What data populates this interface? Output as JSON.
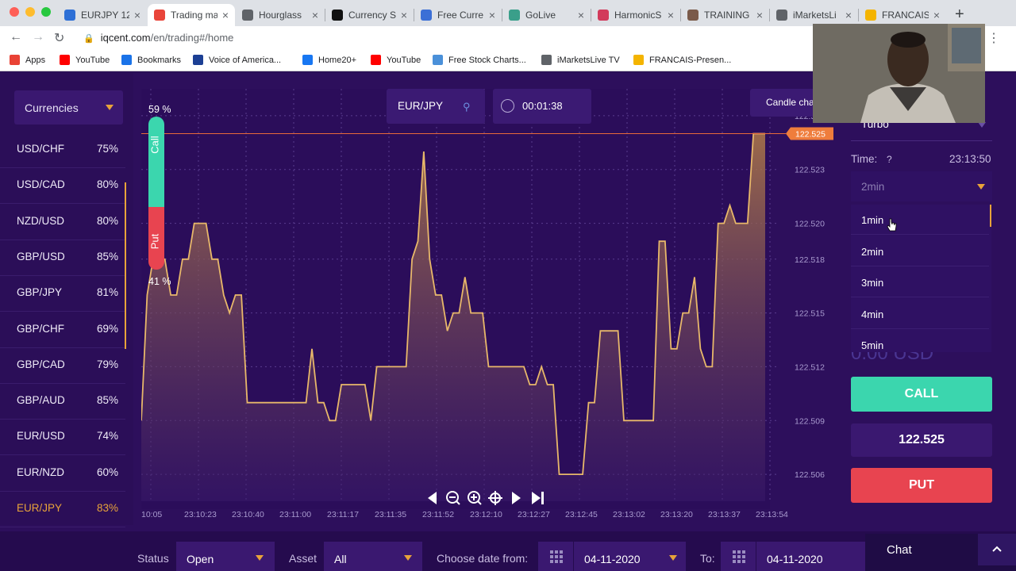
{
  "browser": {
    "tabs": [
      {
        "title": "EURJPY 12",
        "icon_color": "#2d6fd6"
      },
      {
        "title": "Trading ma",
        "icon_color": "#e9453a",
        "active": true
      },
      {
        "title": "Hourglass",
        "icon_color": "#5f6368"
      },
      {
        "title": "Currency S",
        "icon_color": "#111111"
      },
      {
        "title": "Free Curre",
        "icon_color": "#3b6fd6"
      },
      {
        "title": "GoLive",
        "icon_color": "#3a9f8a"
      },
      {
        "title": "HarmonicS",
        "icon_color": "#d23a5b"
      },
      {
        "title": "TRAINING",
        "icon_color": "#7a5a4a"
      },
      {
        "title": "iMarketsLi",
        "icon_color": "#5f6368"
      },
      {
        "title": "FRANCAIS",
        "icon_color": "#f4b400"
      }
    ],
    "url_host": "iqcent.com",
    "url_path": "/en/trading#/home",
    "bookmarks": [
      {
        "label": "Apps",
        "icon": "apps-grid-icon",
        "color": "#e94235"
      },
      {
        "label": "YouTube",
        "icon": "youtube-icon",
        "color": "#ff0000"
      },
      {
        "label": "Bookmarks",
        "icon": "star-icon",
        "color": "#1a73e8"
      },
      {
        "label": "Voice of America...",
        "icon": "voa-icon",
        "color": "#1c3f94"
      },
      {
        "label": "Home20+",
        "icon": "facebook-icon",
        "color": "#1877f2"
      },
      {
        "label": "YouTube",
        "icon": "youtube-icon",
        "color": "#ff0000"
      },
      {
        "label": "Free Stock Charts...",
        "icon": "cloud-icon",
        "color": "#4a90d9"
      },
      {
        "label": "iMarketsLive TV",
        "icon": "globe-icon",
        "color": "#5f6368"
      },
      {
        "label": "FRANCAIS-Presen...",
        "icon": "slides-icon",
        "color": "#f4b400"
      }
    ]
  },
  "left_panel": {
    "category": "Currencies",
    "pairs": [
      {
        "name": "USD/CHF",
        "payout": "75%"
      },
      {
        "name": "USD/CAD",
        "payout": "80%"
      },
      {
        "name": "NZD/USD",
        "payout": "80%"
      },
      {
        "name": "GBP/USD",
        "payout": "85%"
      },
      {
        "name": "GBP/JPY",
        "payout": "81%"
      },
      {
        "name": "GBP/CHF",
        "payout": "69%"
      },
      {
        "name": "GBP/CAD",
        "payout": "79%"
      },
      {
        "name": "GBP/AUD",
        "payout": "85%"
      },
      {
        "name": "EUR/USD",
        "payout": "74%"
      },
      {
        "name": "EUR/NZD",
        "payout": "60%"
      },
      {
        "name": "EUR/JPY",
        "payout": "83%",
        "selected": true
      }
    ]
  },
  "chart_header": {
    "asset": "EUR/JPY",
    "timer": "00:01:38",
    "chart_type_button": "Candle cha"
  },
  "sentiment": {
    "call_pct": "59 %",
    "put_pct": "41 %",
    "call_label": "Call",
    "put_label": "Put",
    "call_fraction": 0.59
  },
  "chart_data": {
    "type": "area",
    "title": "",
    "xlabel": "",
    "ylabel": "",
    "x_ticks": [
      "10:05",
      "23:10:23",
      "23:10:40",
      "23:11:00",
      "23:11:17",
      "23:11:35",
      "23:11:52",
      "23:12:10",
      "23:12:27",
      "23:12:45",
      "23:13:02",
      "23:13:20",
      "23:13:37",
      "23:13:54"
    ],
    "y_ticks": [
      "122.526",
      "122.523",
      "122.520",
      "122.518",
      "122.515",
      "122.512",
      "122.509",
      "122.506"
    ],
    "ylim": [
      122.5045,
      122.5275
    ],
    "current_price": "122.525",
    "series": [
      {
        "values": [
          122.509,
          122.516,
          122.518,
          122.518,
          122.518,
          122.516,
          122.516,
          122.518,
          122.518,
          122.52,
          122.52,
          122.52,
          122.518,
          122.518,
          122.516,
          122.515,
          122.516,
          122.516,
          122.51,
          122.51,
          122.51,
          122.51,
          122.51,
          122.51,
          122.51,
          122.51,
          122.51,
          122.51,
          122.51,
          122.513,
          122.51,
          122.51,
          122.509,
          122.509,
          122.511,
          122.511,
          122.511,
          122.511,
          122.511,
          122.509,
          122.512,
          122.512,
          122.512,
          122.512,
          122.512,
          122.512,
          122.518,
          122.519,
          122.524,
          122.518,
          122.516,
          122.516,
          122.514,
          122.515,
          122.515,
          122.517,
          122.515,
          122.515,
          122.515,
          122.512,
          122.512,
          122.512,
          122.512,
          122.512,
          122.512,
          122.512,
          122.511,
          122.511,
          122.512,
          122.511,
          122.511,
          122.506,
          122.506,
          122.506,
          122.506,
          122.506,
          122.51,
          122.51,
          122.514,
          122.514,
          122.514,
          122.514,
          122.509,
          122.509,
          122.509,
          122.509,
          122.509,
          122.509,
          122.519,
          122.519,
          122.513,
          122.513,
          122.515,
          122.515,
          122.517,
          122.513,
          122.512,
          122.512,
          122.52,
          122.52,
          122.521,
          122.52,
          122.52,
          122.52,
          122.525,
          122.525,
          122.525
        ],
        "color": "#e8b86a"
      }
    ],
    "grid": true
  },
  "chart_controls": [
    "prev-icon",
    "zoom-out-icon",
    "zoom-in-icon",
    "crosshair-icon",
    "play-icon",
    "skip-end-icon"
  ],
  "option_panel": {
    "mode_value": "Turbo",
    "time_label": "Time:",
    "time_help": "?",
    "server_time": "23:13:50",
    "expiry_selected": "2min",
    "expiry_options": [
      "1min",
      "2min",
      "3min",
      "4min",
      "5min"
    ],
    "amount_partial": "0.00 USD",
    "call_label": "CALL",
    "price": "122.525",
    "put_label": "PUT"
  },
  "bottom_bar": {
    "status_label": "Status",
    "status_value": "Open",
    "asset_label": "Asset",
    "asset_value": "All",
    "date_from_label": "Choose date from:",
    "date_from": "04-11-2020",
    "to_label": "To:",
    "date_to": "04-11-2020"
  },
  "chat": {
    "label": "Chat"
  },
  "colors": {
    "accent": "#e8a33a",
    "call": "#3bd6ae",
    "put": "#e84450",
    "line": "#e8b86a",
    "background": "#2d0f5c"
  }
}
